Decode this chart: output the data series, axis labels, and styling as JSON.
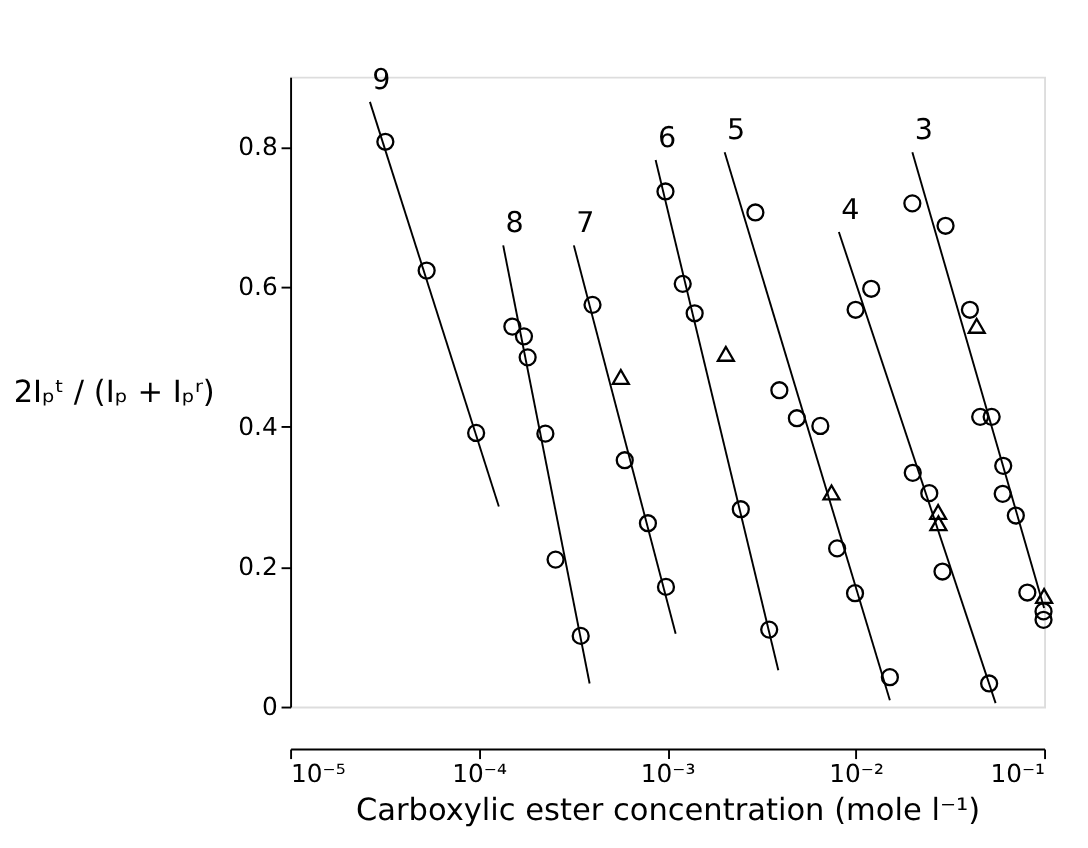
{
  "chart_data": {
    "type": "scatter",
    "xlabel": "Carboxylic ester concentration (mole l⁻¹)",
    "ylabel": "2Iₚᵗ / (Iₚ + Iₚʳ)",
    "log": "x",
    "xlim": [
      1e-05,
      0.1
    ],
    "ylim": [
      0,
      0.9
    ],
    "xticks": [
      {
        "value": 1e-05,
        "label": "10⁻⁵"
      },
      {
        "value": 0.0001,
        "label": "10⁻⁴"
      },
      {
        "value": 0.001,
        "label": "10⁻³"
      },
      {
        "value": 0.01,
        "label": "10⁻²"
      },
      {
        "value": 0.1,
        "label": "10⁻¹"
      }
    ],
    "yticks": [
      0,
      0.2,
      0.4,
      0.6,
      0.8
    ],
    "grid": false,
    "series": [
      {
        "marker": "circle",
        "color": "#000000",
        "x": [
          3.2e-05,
          5.3e-05,
          9.7e-05,
          0.000151,
          0.000174,
          0.000182,
          0.000226,
          0.000256,
          0.000348,
          0.000402,
          0.000596,
          0.000791,
          0.000986,
          0.00098,
          0.00121,
          0.0014,
          0.00246,
          0.00348,
          0.00294,
          0.00394,
          0.00488,
          0.0065,
          0.00798,
          0.00993,
          0.0152,
          0.0121,
          0.01,
          0.0201,
          0.0246,
          0.0289,
          0.0511,
          0.02,
          0.03,
          0.0404,
          0.0458,
          0.0527,
          0.0607,
          0.0603,
          0.0708,
          0.0815,
          0.0993,
          0.0993
        ],
        "values": [
          0.807,
          0.623,
          0.391,
          0.543,
          0.529,
          0.499,
          0.39,
          0.21,
          0.101,
          0.574,
          0.352,
          0.262,
          0.171,
          0.736,
          0.604,
          0.562,
          0.282,
          0.11,
          0.706,
          0.452,
          0.412,
          0.401,
          0.226,
          0.162,
          0.042,
          0.597,
          0.567,
          0.334,
          0.305,
          0.193,
          0.033,
          0.719,
          0.687,
          0.567,
          0.414,
          0.414,
          0.344,
          0.304,
          0.273,
          0.163,
          0.136,
          0.124
        ]
      },
      {
        "marker": "triangle",
        "color": "#000000",
        "x": [
          0.000568,
          0.00205,
          0.00745,
          0.0274,
          0.0275,
          0.0439,
          0.1
        ],
        "values": [
          0.471,
          0.504,
          0.306,
          0.278,
          0.262,
          0.544,
          0.158
        ]
      },
      {
        "type": "line",
        "name": "9",
        "color": "#000000",
        "x": [
          2.65e-05,
          0.000128
        ],
        "values": [
          0.864,
          0.286
        ]
      },
      {
        "type": "line",
        "name": "8",
        "color": "#000000",
        "x": [
          0.000135,
          0.000388
        ],
        "values": [
          0.659,
          0.033
        ]
      },
      {
        "type": "line",
        "name": "7",
        "color": "#000000",
        "x": [
          0.00032,
          0.00111
        ],
        "values": [
          0.659,
          0.104
        ]
      },
      {
        "type": "line",
        "name": "6",
        "color": "#000000",
        "x": [
          0.000869,
          0.00389
        ],
        "values": [
          0.781,
          0.052
        ]
      },
      {
        "type": "line",
        "name": "5",
        "color": "#000000",
        "x": [
          0.00202,
          0.0152
        ],
        "values": [
          0.792,
          0.009
        ]
      },
      {
        "type": "line",
        "name": "4",
        "color": "#000000",
        "x": [
          0.00815,
          0.0553
        ],
        "values": [
          0.678,
          0.005
        ]
      },
      {
        "type": "line",
        "name": "3",
        "color": "#000000",
        "x": [
          0.02,
          0.1
        ],
        "values": [
          0.792,
          0.141
        ]
      }
    ]
  }
}
